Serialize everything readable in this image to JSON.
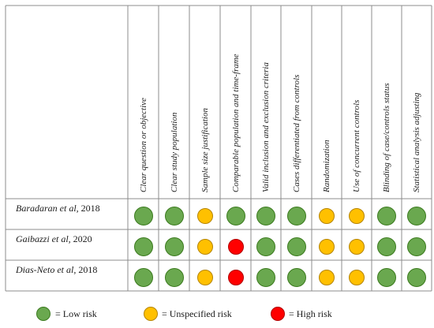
{
  "colors": {
    "low": "#6aa84f",
    "low_border": "#3b7a1e",
    "unspecified": "#ffc000",
    "unspecified_border": "#b58400",
    "high": "#ff0000",
    "high_border": "#b00000",
    "grid": "#8c8c8c"
  },
  "criteria": [
    "Clear question or objective",
    "Clear study population",
    "Sample size justification",
    "Comparable population and time-frame",
    "Valid inclusion and exclusion criteria",
    "Cases differentiated from controls",
    "Randomization",
    "Use of concurrent controls",
    "Blinding of case/controls status",
    "Statistical analysis adjusting"
  ],
  "studies": [
    {
      "name": "Baradaran et al,",
      "year": "2018",
      "ratings": [
        "low",
        "low",
        "unspecified",
        "low",
        "low",
        "low",
        "unspecified",
        "unspecified",
        "low",
        "low"
      ]
    },
    {
      "name": "Gaibazzi et al,",
      "year": "2020",
      "ratings": [
        "low",
        "low",
        "unspecified",
        "high",
        "low",
        "low",
        "unspecified",
        "unspecified",
        "low",
        "low"
      ]
    },
    {
      "name": "Dias-Neto et al,",
      "year": "2018",
      "ratings": [
        "low",
        "low",
        "unspecified",
        "high",
        "low",
        "low",
        "unspecified",
        "unspecified",
        "low",
        "low"
      ]
    }
  ],
  "legend": {
    "low": "= Low risk",
    "unspecified": "= Unspecified risk",
    "high": "= High risk"
  }
}
